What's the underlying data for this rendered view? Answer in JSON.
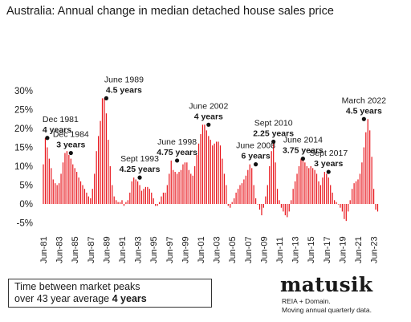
{
  "chart_data": {
    "type": "bar",
    "title": "Australia: Annual change in median detached house sales price",
    "xlabel": "",
    "ylabel": "",
    "ylim": [
      -5,
      30
    ],
    "y_ticks": [
      "30%",
      "25%",
      "20%",
      "15%",
      "10%",
      "5%",
      "0%",
      "-5%"
    ],
    "x_ticks": [
      "Jun-81",
      "Jun-83",
      "Jun-85",
      "Jun-87",
      "Jun-89",
      "Jun-91",
      "Jun-93",
      "Jun-95",
      "Jun-97",
      "Jun-99",
      "Jun-01",
      "Jun-03",
      "Jun-05",
      "Jun-07",
      "Jun-09",
      "Jun-11",
      "Jun-13",
      "Jun-15",
      "Jun-17",
      "Jun-19",
      "Jun-21",
      "Jun-23"
    ],
    "start_quarter": "Jun-81",
    "bar_color": "#e8141b",
    "grid": false,
    "values": [
      10.5,
      17.5,
      15,
      12,
      9.5,
      6.5,
      5.5,
      5,
      5.5,
      8,
      11,
      13.5,
      14,
      13,
      12,
      10.5,
      9.5,
      8.5,
      7,
      6,
      5,
      4,
      3,
      2,
      1.5,
      4,
      8,
      14,
      18,
      22,
      28,
      28,
      24,
      17,
      10,
      5,
      2,
      1,
      0.5,
      0.5,
      1,
      -0.5,
      0.5,
      1,
      3,
      6,
      7,
      6.5,
      6,
      5,
      3.5,
      4,
      4.5,
      4.5,
      4,
      3,
      1.5,
      -0.5,
      -0.5,
      0.5,
      2,
      3,
      3,
      5,
      8,
      11.5,
      9,
      8.5,
      8,
      8.5,
      9,
      10.5,
      11,
      11,
      9,
      8,
      7.5,
      10,
      13,
      16,
      18.5,
      21,
      21,
      19.5,
      18,
      17,
      15.5,
      16,
      16.5,
      16.5,
      15.5,
      12,
      8,
      5,
      -0.5,
      -1,
      0.5,
      1.5,
      3,
      4,
      5,
      5.5,
      6.5,
      7.5,
      9,
      10.5,
      9.5,
      5,
      1.5,
      0,
      -1.5,
      -3,
      -1,
      2,
      5,
      10,
      14,
      16.5,
      11,
      4,
      1,
      -1,
      -2,
      -3,
      -3.5,
      -2,
      1,
      4,
      6,
      8,
      10,
      12,
      12,
      11,
      10,
      9.5,
      10,
      9.5,
      9,
      8,
      6,
      5,
      7,
      8.5,
      8,
      7,
      5,
      3,
      1,
      0.5,
      0,
      -1,
      -2,
      -4,
      -4.5,
      -2,
      1,
      4,
      5.5,
      6,
      6.5,
      8,
      11,
      15,
      19,
      22.5,
      19.5,
      12.5,
      4,
      -1.5,
      -2
    ],
    "annotations": [
      {
        "quarter": "Dec-81",
        "label": "Dec 1981",
        "duration": "4 years",
        "value": 17.5
      },
      {
        "quarter": "Dec-84",
        "label": "Dec 1984",
        "duration": "3 years",
        "value": 13.5
      },
      {
        "quarter": "Jun-89",
        "label": "June 1989",
        "duration": "4.5 years",
        "value": 28
      },
      {
        "quarter": "Sep-93",
        "label": "Sept 1993",
        "duration": "4.25 years",
        "value": 7
      },
      {
        "quarter": "Jun-98",
        "label": "June 1998",
        "duration": "4.75 years",
        "value": 11.5
      },
      {
        "quarter": "Jun-02",
        "label": "June 2002",
        "duration": "4 years",
        "value": 21
      },
      {
        "quarter": "Jun-08",
        "label": "June 2008",
        "duration": "6 years",
        "value": 10.5
      },
      {
        "quarter": "Sep-10",
        "label": "Sept 2010",
        "duration": "2.25 years",
        "value": 16.5
      },
      {
        "quarter": "Jun-14",
        "label": "June 2014",
        "duration": "3.75 years",
        "value": 12
      },
      {
        "quarter": "Sep-17",
        "label": "Sept 2017",
        "duration": "3 years",
        "value": 8.5
      },
      {
        "quarter": "Mar-22",
        "label": "March 2022",
        "duration": "4.5 years",
        "value": 22.5
      }
    ]
  },
  "summary": {
    "line1": "Time between market peaks",
    "line2_prefix": "over 43 year average ",
    "line2_value": "4 years"
  },
  "brand": {
    "logo": "matusik",
    "source_line1": "REIA + Domain.",
    "source_line2": "Moving annual quarterly data."
  }
}
